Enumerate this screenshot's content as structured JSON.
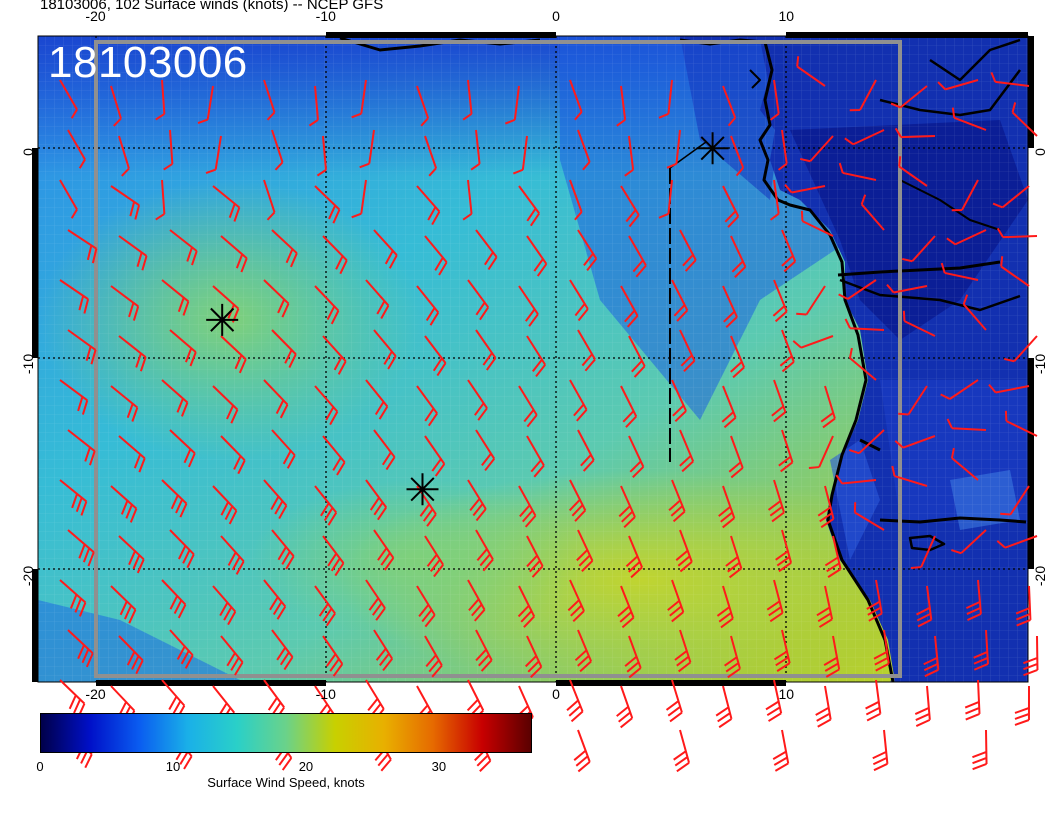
{
  "title": "18103006, 102 Surface winds (knots) -- NCEP GFS",
  "stamp": "18103006",
  "axes": {
    "lon_ticks": [
      -20,
      -10,
      0,
      10
    ],
    "lat_ticks": [
      0,
      -10,
      -20
    ],
    "lon_range": [
      -22.5,
      20.5
    ],
    "lat_range": [
      5.5,
      -25
    ]
  },
  "colorbar": {
    "label": "Surface Wind Speed, knots",
    "ticks": [
      "0",
      "10",
      "20",
      "30"
    ],
    "range": [
      0,
      37
    ],
    "colors": [
      "#00004a",
      "#0010c8",
      "#0a5cf0",
      "#1ab0e8",
      "#2ad0c8",
      "#6ad28a",
      "#c8d000",
      "#e8b000",
      "#e66a00",
      "#c80000",
      "#5a0000"
    ]
  },
  "markers": [
    {
      "lon": -14.5,
      "lat": -7.9,
      "symbol": "asterisk"
    },
    {
      "lon": -5.8,
      "lat": -15.9,
      "symbol": "asterisk"
    },
    {
      "lon": 6.8,
      "lat": 0.2,
      "symbol": "asterisk"
    }
  ],
  "colors": {
    "barb": "#ff1a1a",
    "coast": "#000000",
    "grid": "#000000"
  },
  "wind_barb_note_colors": {
    "ocean_low": "#1e6ae6",
    "ocean_mid": "#3cc0d8",
    "ocean_high": "#a8c830",
    "land": "#0a28a8"
  }
}
